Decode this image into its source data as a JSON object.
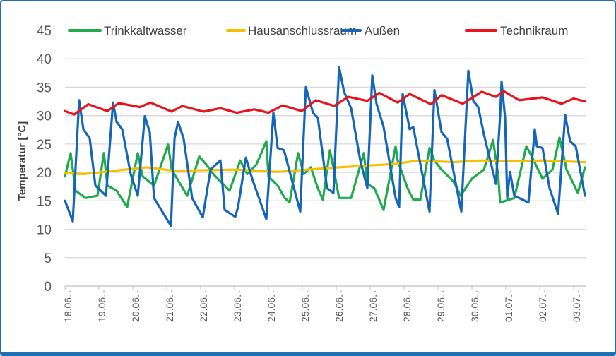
{
  "chart_data": {
    "type": "line",
    "title": "",
    "xlabel": "",
    "ylabel": "Temperatur [°C]",
    "ylim": [
      0,
      45
    ],
    "yticks": [
      "0",
      "5",
      "10",
      "15",
      "20",
      "25",
      "30",
      "35",
      "40",
      "45"
    ],
    "categories": [
      "18.06.",
      "19.06.",
      "20.06.",
      "21.06.",
      "22.06.",
      "23.06.",
      "24.06.",
      "25.06.",
      "26.06.",
      "27.06.",
      "28.06.",
      "29.06.",
      "30.06.",
      "01.07.",
      "02.07.",
      "03.07."
    ],
    "grid": true,
    "legend": "top",
    "series": [
      {
        "name": "Trinkkaltwasser",
        "color": "#1faa4b",
        "points": [
          [
            "18.06. 00:00",
            19.3
          ],
          [
            "18.06. 04:00",
            23.4
          ],
          [
            "18.06. 07:30",
            16.8
          ],
          [
            "18.06. 14:30",
            15.5
          ],
          [
            "18.06. 23:00",
            15.9
          ],
          [
            "19.06. 03:30",
            23.4
          ],
          [
            "19.06. 06:00",
            17.7
          ],
          [
            "19.06. 12:30",
            16.8
          ],
          [
            "19.06. 20:00",
            13.9
          ],
          [
            "20.06. 03:30",
            23.4
          ],
          [
            "20.06. 07:00",
            19.3
          ],
          [
            "20.06. 15:00",
            17.7
          ],
          [
            "21.06. 01:00",
            24.9
          ],
          [
            "21.06. 03:30",
            20.5
          ],
          [
            "21.06. 14:30",
            15.9
          ],
          [
            "21.06. 23:00",
            22.8
          ],
          [
            "22.06. 04:00",
            21.4
          ],
          [
            "22.06. 09:00",
            19.7
          ],
          [
            "22.06. 20:30",
            16.8
          ],
          [
            "23.06. 04:00",
            22.1
          ],
          [
            "23.06. 09:00",
            19.7
          ],
          [
            "23.06. 15:30",
            21.4
          ],
          [
            "23.06. 22:30",
            25.5
          ],
          [
            "24.06. 00:00",
            19.3
          ],
          [
            "24.06. 06:30",
            17.7
          ],
          [
            "24.06. 11:30",
            15.5
          ],
          [
            "24.06. 15:00",
            14.7
          ],
          [
            "24.06. 21:00",
            23.4
          ],
          [
            "25.06. 01:00",
            19.7
          ],
          [
            "25.06. 06:00",
            20.9
          ],
          [
            "25.06. 11:00",
            17.2
          ],
          [
            "25.06. 14:30",
            15.2
          ],
          [
            "25.06. 19:30",
            23.9
          ],
          [
            "25.06. 21:00",
            22.1
          ],
          [
            "26.06. 02:00",
            15.5
          ],
          [
            "26.06. 10:30",
            15.5
          ],
          [
            "26.06. 19:30",
            23.4
          ],
          [
            "26.06. 22:00",
            18.0
          ],
          [
            "27.06. 03:00",
            17.2
          ],
          [
            "27.06. 09:30",
            13.4
          ],
          [
            "27.06. 18:00",
            24.6
          ],
          [
            "27.06. 19:30",
            22.1
          ],
          [
            "28.06. 02:30",
            17.2
          ],
          [
            "28.06. 06:30",
            15.2
          ],
          [
            "28.06. 11:30",
            15.2
          ],
          [
            "28.06. 18:00",
            24.3
          ],
          [
            "28.06. 21:30",
            22.1
          ],
          [
            "29.06. 02:30",
            20.5
          ],
          [
            "29.06. 11:00",
            18.4
          ],
          [
            "29.06. 16:00",
            15.9
          ],
          [
            "30.06. 00:00",
            18.9
          ],
          [
            "30.06. 08:30",
            20.5
          ],
          [
            "30.06. 15:00",
            25.7
          ],
          [
            "30.06. 18:30",
            19.7
          ],
          [
            "30.06. 20:00",
            14.7
          ],
          [
            "01.07. 06:00",
            15.5
          ],
          [
            "01.07. 14:30",
            24.6
          ],
          [
            "01.07. 18:00",
            23.0
          ],
          [
            "02.07. 02:00",
            18.9
          ],
          [
            "02.07. 09:00",
            20.5
          ],
          [
            "02.07. 14:00",
            26.1
          ],
          [
            "02.07. 19:00",
            20.5
          ],
          [
            "03.07. 03:00",
            16.4
          ],
          [
            "03.07. 08:00",
            20.9
          ]
        ]
      },
      {
        "name": "Hausanschlussraum",
        "color": "#f5c000",
        "points": [
          [
            "18.06. 00:00",
            19.9
          ],
          [
            "18.06. 13:00",
            19.7
          ],
          [
            "20.06. 10:00",
            20.9
          ],
          [
            "21.06. 04:30",
            20.3
          ],
          [
            "23.06. 01:30",
            20.5
          ],
          [
            "24.06. 06:30",
            20.1
          ],
          [
            "26.06. 02:00",
            20.9
          ],
          [
            "27.06. 18:00",
            21.5
          ],
          [
            "28.06. 10:00",
            22.1
          ],
          [
            "29.06. 11:00",
            21.8
          ],
          [
            "30.06. 05:00",
            22.1
          ],
          [
            "01.07. 13:00",
            22.0
          ],
          [
            "02.07. 02:00",
            22.1
          ],
          [
            "03.07. 08:00",
            21.8
          ]
        ]
      },
      {
        "name": "Außen",
        "color": "#1565b8",
        "points": [
          [
            "18.06. 00:00",
            15.0
          ],
          [
            "18.06. 05:30",
            11.4
          ],
          [
            "18.06. 10:00",
            32.7
          ],
          [
            "18.06. 13:00",
            27.6
          ],
          [
            "18.06. 17:30",
            26.0
          ],
          [
            "18.06. 21:30",
            17.7
          ],
          [
            "19.06. 05:00",
            15.9
          ],
          [
            "19.06. 10:00",
            32.3
          ],
          [
            "19.06. 12:30",
            28.9
          ],
          [
            "19.06. 16:30",
            27.6
          ],
          [
            "19.06. 22:30",
            19.7
          ],
          [
            "20.06. 03:30",
            15.9
          ],
          [
            "20.06. 08:30",
            29.9
          ],
          [
            "20.06. 12:00",
            27.1
          ],
          [
            "20.06. 15:00",
            15.5
          ],
          [
            "21.06. 03:00",
            10.6
          ],
          [
            "21.06. 05:30",
            25.9
          ],
          [
            "21.06. 08:00",
            28.9
          ],
          [
            "21.06. 12:00",
            25.9
          ],
          [
            "21.06. 18:00",
            15.5
          ],
          [
            "22.06. 01:30",
            12.1
          ],
          [
            "22.06. 07:00",
            20.5
          ],
          [
            "22.06. 14:00",
            22.1
          ],
          [
            "22.06. 17:00",
            13.4
          ],
          [
            "23.06. 00:30",
            12.2
          ],
          [
            "23.06. 02:30",
            13.9
          ],
          [
            "23.06. 08:00",
            22.6
          ],
          [
            "23.06. 12:30",
            18.9
          ],
          [
            "23.06. 22:30",
            11.8
          ],
          [
            "24.06. 03:30",
            30.5
          ],
          [
            "24.06. 06:30",
            24.3
          ],
          [
            "24.06. 11:00",
            23.9
          ],
          [
            "24.06. 22:30",
            13.1
          ],
          [
            "25.06. 02:30",
            35.0
          ],
          [
            "25.06. 07:30",
            30.5
          ],
          [
            "25.06. 11:00",
            29.6
          ],
          [
            "25.06. 17:30",
            17.2
          ],
          [
            "25.06. 22:00",
            16.4
          ],
          [
            "26.06. 02:00",
            38.6
          ],
          [
            "26.06. 05:30",
            34.2
          ],
          [
            "26.06. 10:30",
            31.3
          ],
          [
            "26.06. 17:00",
            22.1
          ],
          [
            "26.06. 22:00",
            17.2
          ],
          [
            "27.06. 01:30",
            37.1
          ],
          [
            "27.06. 04:30",
            32.1
          ],
          [
            "27.06. 09:30",
            28.0
          ],
          [
            "27.06. 18:00",
            15.5
          ],
          [
            "27.06. 20:30",
            13.9
          ],
          [
            "27.06. 23:00",
            33.8
          ],
          [
            "28.06. 04:00",
            27.6
          ],
          [
            "28.06. 06:30",
            28.0
          ],
          [
            "28.06. 18:00",
            13.1
          ],
          [
            "28.06. 21:30",
            34.5
          ],
          [
            "29.06. 02:30",
            27.1
          ],
          [
            "29.06. 06:30",
            25.9
          ],
          [
            "29.06. 16:30",
            13.1
          ],
          [
            "29.06. 21:30",
            37.9
          ],
          [
            "30.06. 01:00",
            32.6
          ],
          [
            "30.06. 04:30",
            31.5
          ],
          [
            "30.06. 08:30",
            26.7
          ],
          [
            "30.06. 17:00",
            18.0
          ],
          [
            "30.06. 20:00",
            30.1
          ],
          [
            "30.06. 21:00",
            36.0
          ],
          [
            "30.06. 23:30",
            29.6
          ],
          [
            "01.07. 01:00",
            15.5
          ],
          [
            "01.07. 03:00",
            20.1
          ],
          [
            "01.07. 06:00",
            15.9
          ],
          [
            "01.07. 16:00",
            14.7
          ],
          [
            "01.07. 20:30",
            27.6
          ],
          [
            "01.07. 22:00",
            24.6
          ],
          [
            "02.07. 02:00",
            24.3
          ],
          [
            "02.07. 07:00",
            17.2
          ],
          [
            "02.07. 13:00",
            12.7
          ],
          [
            "02.07. 18:00",
            30.1
          ],
          [
            "02.07. 21:30",
            25.5
          ],
          [
            "03.07. 01:30",
            24.6
          ],
          [
            "03.07. 08:00",
            15.9
          ]
        ]
      },
      {
        "name": "Technikraum",
        "color": "#e8141c",
        "points": [
          [
            "18.06. 00:00",
            30.8
          ],
          [
            "18.06. 06:30",
            30.2
          ],
          [
            "18.06. 16:30",
            32.0
          ],
          [
            "19.06. 06:00",
            30.8
          ],
          [
            "19.06. 14:00",
            32.2
          ],
          [
            "20.06. 05:00",
            31.5
          ],
          [
            "20.06. 12:30",
            32.3
          ],
          [
            "21.06. 03:30",
            30.7
          ],
          [
            "21.06. 11:00",
            31.7
          ],
          [
            "22.06. 02:00",
            30.7
          ],
          [
            "22.06. 14:00",
            31.3
          ],
          [
            "23.06. 01:30",
            30.5
          ],
          [
            "23.06. 14:00",
            31.1
          ],
          [
            "24.06. 00:00",
            30.5
          ],
          [
            "24.06. 10:00",
            31.8
          ],
          [
            "24.06. 23:30",
            30.8
          ],
          [
            "25.06. 09:30",
            32.7
          ],
          [
            "25.06. 22:30",
            31.7
          ],
          [
            "26.06. 08:30",
            33.3
          ],
          [
            "26.06. 22:00",
            32.6
          ],
          [
            "27.06. 06:30",
            34.0
          ],
          [
            "27.06. 19:30",
            32.3
          ],
          [
            "28.06. 04:00",
            33.8
          ],
          [
            "28.06. 19:00",
            32.0
          ],
          [
            "29.06. 02:30",
            33.6
          ],
          [
            "29.06. 17:30",
            32.1
          ],
          [
            "30.06. 07:00",
            34.2
          ],
          [
            "30.06. 17:00",
            33.3
          ],
          [
            "30.06. 22:30",
            34.3
          ],
          [
            "01.07. 09:30",
            32.7
          ],
          [
            "02.07. 02:00",
            33.2
          ],
          [
            "02.07. 15:30",
            32.1
          ],
          [
            "03.07. 00:00",
            33.0
          ],
          [
            "03.07. 08:00",
            32.5
          ]
        ]
      }
    ]
  }
}
